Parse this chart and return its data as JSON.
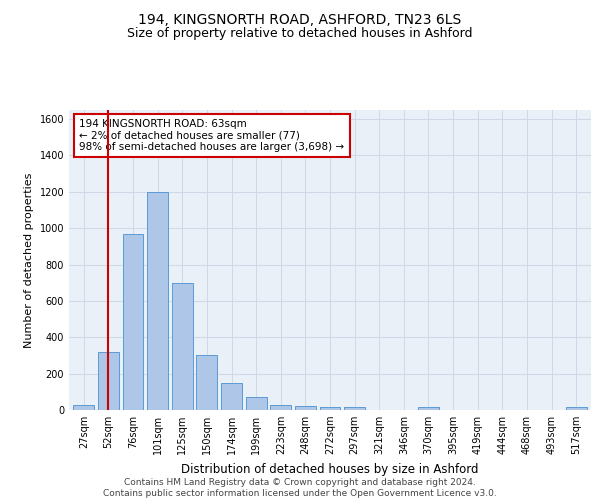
{
  "title": "194, KINGSNORTH ROAD, ASHFORD, TN23 6LS",
  "subtitle": "Size of property relative to detached houses in Ashford",
  "xlabel": "Distribution of detached houses by size in Ashford",
  "ylabel": "Number of detached properties",
  "categories": [
    "27sqm",
    "52sqm",
    "76sqm",
    "101sqm",
    "125sqm",
    "150sqm",
    "174sqm",
    "199sqm",
    "223sqm",
    "248sqm",
    "272sqm",
    "297sqm",
    "321sqm",
    "346sqm",
    "370sqm",
    "395sqm",
    "419sqm",
    "444sqm",
    "468sqm",
    "493sqm",
    "517sqm"
  ],
  "values": [
    30,
    320,
    970,
    1200,
    700,
    300,
    150,
    70,
    30,
    20,
    15,
    15,
    0,
    0,
    15,
    0,
    0,
    0,
    0,
    0,
    15
  ],
  "bar_color": "#aec6e8",
  "bar_edge_color": "#5b9bd5",
  "grid_color": "#d0d8e8",
  "background_color": "#eaf0f8",
  "vline_x": 1.0,
  "vline_color": "#cc0000",
  "annotation_text": "194 KINGSNORTH ROAD: 63sqm\n← 2% of detached houses are smaller (77)\n98% of semi-detached houses are larger (3,698) →",
  "annotation_box_color": "#cc0000",
  "ylim": [
    0,
    1650
  ],
  "yticks": [
    0,
    200,
    400,
    600,
    800,
    1000,
    1200,
    1400,
    1600
  ],
  "footer": "Contains HM Land Registry data © Crown copyright and database right 2024.\nContains public sector information licensed under the Open Government Licence v3.0.",
  "title_fontsize": 10,
  "subtitle_fontsize": 9,
  "xlabel_fontsize": 8.5,
  "ylabel_fontsize": 8,
  "tick_fontsize": 7,
  "footer_fontsize": 6.5,
  "annotation_fontsize": 7.5
}
